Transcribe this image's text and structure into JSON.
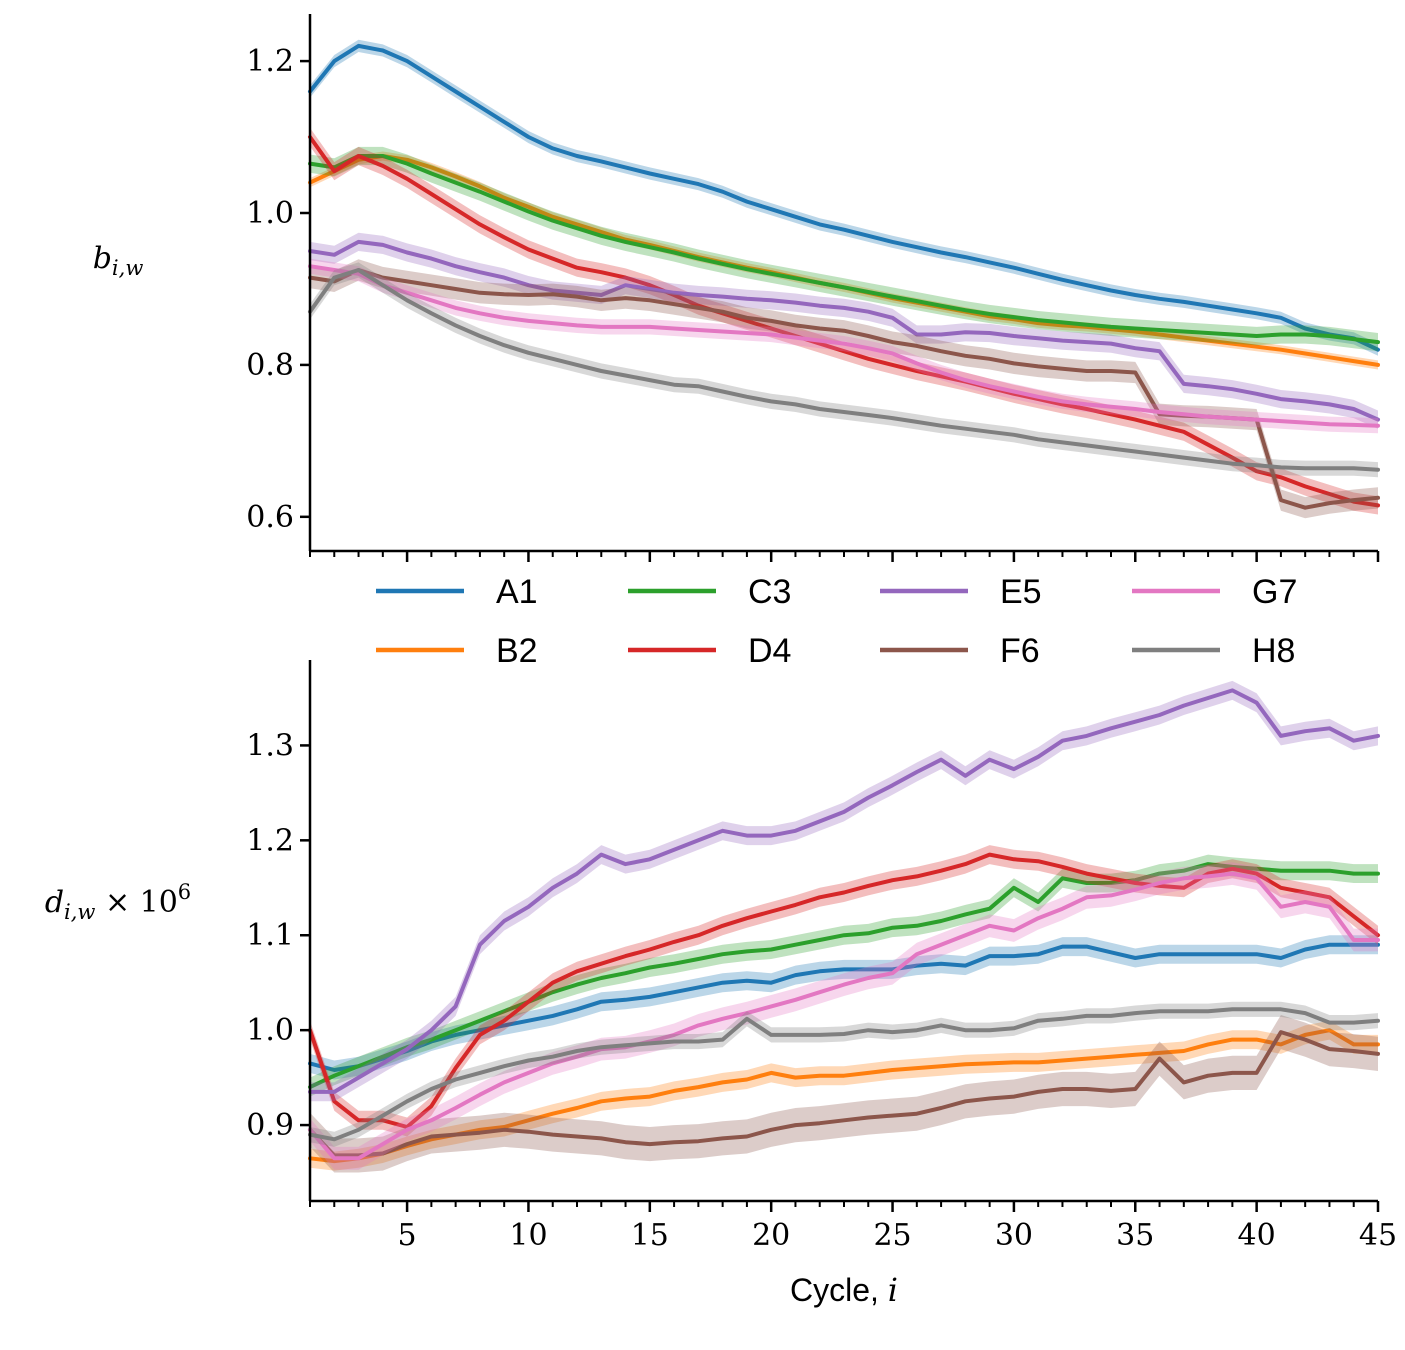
{
  "chart_data": [
    {
      "type": "line",
      "panel": "top",
      "ylabel_base": "b",
      "ylabel_sub": "i,w",
      "ylabel_suffix": "",
      "xlabel": "",
      "xlim": [
        1,
        45
      ],
      "ylim": [
        0.555,
        1.262
      ],
      "yticks": [
        0.6,
        0.8,
        1.0,
        1.2
      ],
      "ytick_labels": [
        "0.6",
        "0.8",
        "1.0",
        "1.2"
      ],
      "x": [
        1,
        2,
        3,
        4,
        5,
        6,
        7,
        8,
        9,
        10,
        11,
        12,
        13,
        14,
        15,
        16,
        17,
        18,
        19,
        20,
        21,
        22,
        23,
        24,
        25,
        26,
        27,
        28,
        29,
        30,
        31,
        32,
        33,
        34,
        35,
        36,
        37,
        38,
        39,
        40,
        41,
        42,
        43,
        44,
        45
      ],
      "shaded_band": true,
      "series": [
        {
          "name": "A1",
          "color": "#1f77b4",
          "band": 0.008,
          "values": [
            1.16,
            1.2,
            1.22,
            1.214,
            1.2,
            1.18,
            1.16,
            1.14,
            1.12,
            1.1,
            1.085,
            1.075,
            1.068,
            1.06,
            1.052,
            1.045,
            1.038,
            1.028,
            1.015,
            1.005,
            0.995,
            0.985,
            0.978,
            0.97,
            0.962,
            0.955,
            0.948,
            0.942,
            0.935,
            0.928,
            0.92,
            0.912,
            0.905,
            0.898,
            0.892,
            0.887,
            0.883,
            0.878,
            0.873,
            0.868,
            0.862,
            0.848,
            0.84,
            0.835,
            0.82
          ]
        },
        {
          "name": "B2",
          "color": "#ff7f0e",
          "band": 0.006,
          "values": [
            1.04,
            1.055,
            1.07,
            1.075,
            1.07,
            1.06,
            1.048,
            1.035,
            1.02,
            1.008,
            0.995,
            0.985,
            0.975,
            0.965,
            0.958,
            0.95,
            0.942,
            0.935,
            0.928,
            0.922,
            0.915,
            0.908,
            0.902,
            0.895,
            0.888,
            0.882,
            0.876,
            0.87,
            0.864,
            0.86,
            0.855,
            0.852,
            0.85,
            0.847,
            0.844,
            0.84,
            0.836,
            0.832,
            0.828,
            0.824,
            0.82,
            0.815,
            0.81,
            0.805,
            0.8
          ]
        },
        {
          "name": "C3",
          "color": "#2ca02c",
          "band": 0.012,
          "values": [
            1.065,
            1.06,
            1.075,
            1.075,
            1.065,
            1.052,
            1.04,
            1.028,
            1.015,
            1.002,
            0.99,
            0.98,
            0.97,
            0.962,
            0.955,
            0.948,
            0.94,
            0.933,
            0.926,
            0.92,
            0.914,
            0.908,
            0.902,
            0.896,
            0.89,
            0.884,
            0.878,
            0.872,
            0.867,
            0.863,
            0.859,
            0.856,
            0.853,
            0.85,
            0.848,
            0.846,
            0.844,
            0.842,
            0.84,
            0.838,
            0.84,
            0.84,
            0.838,
            0.834,
            0.83
          ]
        },
        {
          "name": "D4",
          "color": "#d62728",
          "band": 0.012,
          "values": [
            1.1,
            1.055,
            1.075,
            1.062,
            1.045,
            1.025,
            1.005,
            0.985,
            0.968,
            0.952,
            0.94,
            0.928,
            0.922,
            0.915,
            0.905,
            0.892,
            0.878,
            0.868,
            0.858,
            0.848,
            0.838,
            0.828,
            0.818,
            0.808,
            0.8,
            0.792,
            0.785,
            0.778,
            0.77,
            0.762,
            0.755,
            0.748,
            0.742,
            0.735,
            0.728,
            0.72,
            0.712,
            0.695,
            0.678,
            0.66,
            0.652,
            0.64,
            0.63,
            0.62,
            0.615
          ]
        },
        {
          "name": "E5",
          "color": "#9467bd",
          "band": 0.012,
          "values": [
            0.95,
            0.945,
            0.962,
            0.958,
            0.948,
            0.94,
            0.93,
            0.922,
            0.915,
            0.905,
            0.898,
            0.895,
            0.892,
            0.905,
            0.9,
            0.895,
            0.892,
            0.89,
            0.887,
            0.885,
            0.882,
            0.878,
            0.875,
            0.87,
            0.862,
            0.84,
            0.84,
            0.843,
            0.842,
            0.838,
            0.835,
            0.832,
            0.83,
            0.828,
            0.822,
            0.818,
            0.775,
            0.772,
            0.768,
            0.762,
            0.755,
            0.752,
            0.748,
            0.742,
            0.728
          ]
        },
        {
          "name": "F6",
          "color": "#8c564b",
          "band": 0.014,
          "values": [
            0.915,
            0.91,
            0.925,
            0.915,
            0.91,
            0.905,
            0.9,
            0.895,
            0.893,
            0.892,
            0.893,
            0.89,
            0.885,
            0.888,
            0.885,
            0.88,
            0.875,
            0.87,
            0.862,
            0.858,
            0.852,
            0.848,
            0.845,
            0.838,
            0.83,
            0.825,
            0.818,
            0.812,
            0.808,
            0.802,
            0.798,
            0.795,
            0.792,
            0.792,
            0.79,
            0.735,
            0.733,
            0.732,
            0.73,
            0.728,
            0.622,
            0.612,
            0.618,
            0.622,
            0.625
          ]
        },
        {
          "name": "G7",
          "color": "#e377c2",
          "band": 0.01,
          "values": [
            0.93,
            0.925,
            0.92,
            0.905,
            0.895,
            0.885,
            0.875,
            0.868,
            0.862,
            0.858,
            0.855,
            0.852,
            0.85,
            0.85,
            0.85,
            0.848,
            0.846,
            0.844,
            0.842,
            0.84,
            0.836,
            0.832,
            0.828,
            0.822,
            0.815,
            0.802,
            0.79,
            0.78,
            0.772,
            0.765,
            0.758,
            0.752,
            0.748,
            0.745,
            0.742,
            0.738,
            0.735,
            0.732,
            0.73,
            0.728,
            0.726,
            0.724,
            0.722,
            0.721,
            0.72
          ]
        },
        {
          "name": "H8",
          "color": "#7f7f7f",
          "band": 0.01,
          "values": [
            0.87,
            0.915,
            0.925,
            0.905,
            0.885,
            0.868,
            0.852,
            0.838,
            0.826,
            0.816,
            0.808,
            0.8,
            0.792,
            0.786,
            0.78,
            0.774,
            0.772,
            0.765,
            0.758,
            0.752,
            0.748,
            0.742,
            0.738,
            0.734,
            0.73,
            0.725,
            0.72,
            0.716,
            0.712,
            0.708,
            0.702,
            0.698,
            0.694,
            0.69,
            0.686,
            0.682,
            0.678,
            0.674,
            0.67,
            0.668,
            0.665,
            0.664,
            0.664,
            0.664,
            0.662
          ]
        }
      ]
    },
    {
      "type": "line",
      "panel": "bottom",
      "ylabel_base": "d",
      "ylabel_sub": "i,w",
      "ylabel_suffix": " × 10",
      "ylabel_sup": "6",
      "xlabel": "Cycle, ",
      "xlabel_var": "i",
      "xlim": [
        1,
        45
      ],
      "ylim": [
        0.82,
        1.39
      ],
      "yticks": [
        0.9,
        1.0,
        1.1,
        1.2,
        1.3
      ],
      "ytick_labels": [
        "0.9",
        "1.0",
        "1.1",
        "1.2",
        "1.3"
      ],
      "xticks": [
        5,
        10,
        15,
        20,
        25,
        30,
        35,
        40,
        45
      ],
      "xtick_labels": [
        "5",
        "10",
        "15",
        "20",
        "25",
        "30",
        "35",
        "40",
        "45"
      ],
      "x": [
        1,
        2,
        3,
        4,
        5,
        6,
        7,
        8,
        9,
        10,
        11,
        12,
        13,
        14,
        15,
        16,
        17,
        18,
        19,
        20,
        21,
        22,
        23,
        24,
        25,
        26,
        27,
        28,
        29,
        30,
        31,
        32,
        33,
        34,
        35,
        36,
        37,
        38,
        39,
        40,
        41,
        42,
        43,
        44,
        45
      ],
      "shaded_band": true,
      "series": [
        {
          "name": "A1",
          "color": "#1f77b4",
          "band": 0.01,
          "values": [
            0.965,
            0.958,
            0.962,
            0.97,
            0.978,
            0.988,
            0.995,
            1.0,
            1.005,
            1.01,
            1.015,
            1.022,
            1.03,
            1.032,
            1.035,
            1.04,
            1.045,
            1.05,
            1.052,
            1.05,
            1.058,
            1.062,
            1.064,
            1.064,
            1.064,
            1.068,
            1.07,
            1.068,
            1.078,
            1.078,
            1.08,
            1.088,
            1.088,
            1.082,
            1.076,
            1.08,
            1.08,
            1.08,
            1.08,
            1.08,
            1.076,
            1.085,
            1.09,
            1.09,
            1.09
          ]
        },
        {
          "name": "B2",
          "color": "#ff7f0e",
          "band": 0.01,
          "values": [
            0.865,
            0.862,
            0.865,
            0.87,
            0.878,
            0.885,
            0.89,
            0.895,
            0.898,
            0.905,
            0.912,
            0.918,
            0.925,
            0.928,
            0.93,
            0.936,
            0.94,
            0.945,
            0.948,
            0.955,
            0.95,
            0.952,
            0.952,
            0.955,
            0.958,
            0.96,
            0.962,
            0.964,
            0.965,
            0.966,
            0.966,
            0.968,
            0.97,
            0.972,
            0.974,
            0.976,
            0.978,
            0.985,
            0.99,
            0.99,
            0.985,
            0.995,
            1.0,
            0.985,
            0.985
          ]
        },
        {
          "name": "C3",
          "color": "#2ca02c",
          "band": 0.01,
          "values": [
            0.94,
            0.952,
            0.962,
            0.972,
            0.982,
            0.99,
            1.0,
            1.01,
            1.02,
            1.03,
            1.04,
            1.048,
            1.055,
            1.06,
            1.066,
            1.07,
            1.075,
            1.08,
            1.083,
            1.085,
            1.09,
            1.095,
            1.1,
            1.102,
            1.108,
            1.11,
            1.115,
            1.122,
            1.128,
            1.15,
            1.135,
            1.16,
            1.155,
            1.155,
            1.158,
            1.165,
            1.168,
            1.175,
            1.172,
            1.17,
            1.168,
            1.168,
            1.168,
            1.165,
            1.165
          ]
        },
        {
          "name": "D4",
          "color": "#d62728",
          "band": 0.01,
          "values": [
            1.0,
            0.925,
            0.905,
            0.905,
            0.898,
            0.92,
            0.96,
            0.995,
            1.01,
            1.03,
            1.05,
            1.062,
            1.07,
            1.078,
            1.085,
            1.093,
            1.1,
            1.11,
            1.118,
            1.125,
            1.132,
            1.14,
            1.145,
            1.152,
            1.158,
            1.162,
            1.168,
            1.175,
            1.185,
            1.18,
            1.178,
            1.172,
            1.165,
            1.16,
            1.155,
            1.152,
            1.15,
            1.165,
            1.17,
            1.165,
            1.15,
            1.145,
            1.14,
            1.12,
            1.1
          ]
        },
        {
          "name": "E5",
          "color": "#9467bd",
          "band": 0.01,
          "values": [
            0.935,
            0.935,
            0.95,
            0.965,
            0.98,
            1.0,
            1.025,
            1.09,
            1.115,
            1.13,
            1.15,
            1.165,
            1.185,
            1.175,
            1.18,
            1.19,
            1.2,
            1.21,
            1.205,
            1.205,
            1.21,
            1.22,
            1.23,
            1.245,
            1.258,
            1.272,
            1.285,
            1.268,
            1.285,
            1.275,
            1.288,
            1.305,
            1.31,
            1.318,
            1.325,
            1.332,
            1.342,
            1.35,
            1.358,
            1.345,
            1.31,
            1.315,
            1.318,
            1.305,
            1.31
          ]
        },
        {
          "name": "F6",
          "color": "#8c564b",
          "band": 0.018,
          "values": [
            0.895,
            0.868,
            0.868,
            0.87,
            0.88,
            0.888,
            0.89,
            0.892,
            0.895,
            0.893,
            0.89,
            0.888,
            0.886,
            0.882,
            0.88,
            0.882,
            0.883,
            0.886,
            0.888,
            0.895,
            0.9,
            0.902,
            0.905,
            0.908,
            0.91,
            0.912,
            0.918,
            0.925,
            0.928,
            0.93,
            0.935,
            0.938,
            0.938,
            0.936,
            0.938,
            0.97,
            0.945,
            0.952,
            0.955,
            0.955,
            0.998,
            0.99,
            0.98,
            0.978,
            0.975
          ]
        },
        {
          "name": "G7",
          "color": "#e377c2",
          "band": 0.012,
          "values": [
            0.895,
            0.865,
            0.865,
            0.88,
            0.895,
            0.905,
            0.918,
            0.932,
            0.945,
            0.955,
            0.965,
            0.972,
            0.98,
            0.982,
            0.988,
            0.995,
            1.005,
            1.012,
            1.018,
            1.025,
            1.032,
            1.04,
            1.048,
            1.055,
            1.06,
            1.08,
            1.09,
            1.1,
            1.11,
            1.105,
            1.118,
            1.128,
            1.14,
            1.142,
            1.148,
            1.155,
            1.16,
            1.162,
            1.165,
            1.16,
            1.13,
            1.135,
            1.13,
            1.095,
            1.095
          ]
        },
        {
          "name": "H8",
          "color": "#7f7f7f",
          "band": 0.008,
          "values": [
            0.89,
            0.885,
            0.895,
            0.91,
            0.925,
            0.938,
            0.948,
            0.955,
            0.962,
            0.968,
            0.972,
            0.978,
            0.982,
            0.984,
            0.986,
            0.988,
            0.988,
            0.99,
            1.012,
            0.995,
            0.995,
            0.995,
            0.996,
            1.0,
            0.998,
            1.0,
            1.005,
            1.0,
            1.0,
            1.002,
            1.01,
            1.012,
            1.015,
            1.015,
            1.018,
            1.02,
            1.02,
            1.02,
            1.022,
            1.022,
            1.022,
            1.018,
            1.008,
            1.008,
            1.01
          ]
        }
      ]
    }
  ],
  "legend": {
    "placement": "between-panels",
    "columns": 4,
    "entries": [
      "A1",
      "B2",
      "C3",
      "D4",
      "E5",
      "F6",
      "G7",
      "H8"
    ]
  }
}
